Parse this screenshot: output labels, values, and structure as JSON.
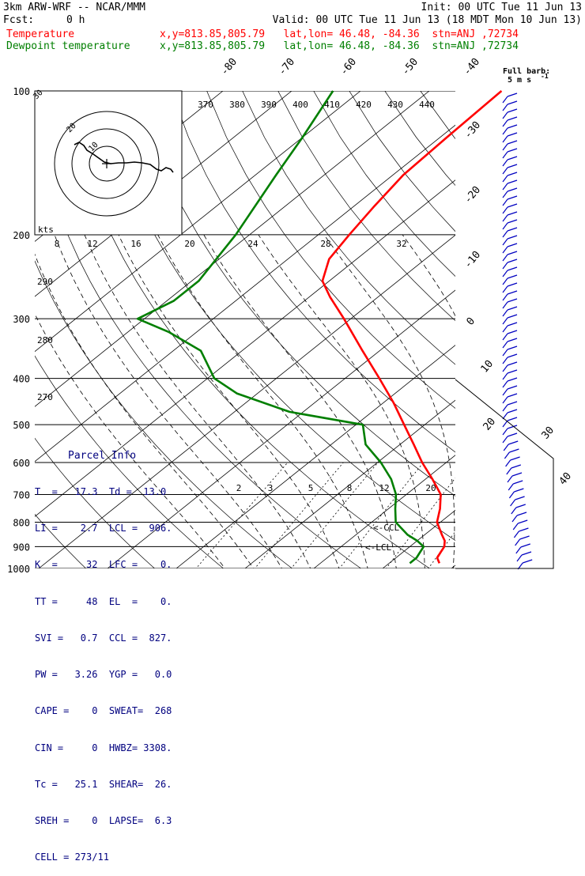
{
  "header": {
    "model": "3km ARW-WRF -- NCAR/MMM",
    "init": "Init: 00 UTC Tue 11 Jun 13",
    "fcst_label": "Fcst:",
    "fcst_value": "0 h",
    "valid": "Valid: 00 UTC Tue 11 Jun 13 (18 MDT Mon 10 Jun 13)",
    "temp_label": "Temperature",
    "temp_loc": "x,y=813.85,805.79   lat,lon= 46.48, -84.36  stn=ANJ ,72734",
    "dew_label": "Dewpoint temperature",
    "dew_loc": "x,y=813.85,805.79   lat,lon= 46.48, -84.36  stn=ANJ ,72734"
  },
  "colors": {
    "temperature": "#ff0000",
    "dewpoint": "#007f00",
    "parcel": "#00007f",
    "barbs": "#0000c0"
  },
  "barb_note": {
    "line1": "Full barb:",
    "line2": "5 m s",
    "sup": "-1"
  },
  "parcel_info": {
    "title": "Parcel Info",
    "rows": [
      "T  =   17.3  Td =  13.0",
      "LI =    2.7  LCL =  906.",
      "K  =     32  LFC =    0.",
      "TT =     48  EL  =    0.",
      "SVI =   0.7  CCL =  827.",
      "PW =   3.26  YGP =   0.0",
      "CAPE =    0  SWEAT=  268",
      "CIN =     0  HWBZ= 3308.",
      "Tc =   25.1  SHEAR=  26.",
      "SREH =    0  LAPSE=  6.3",
      "CELL = 273/11"
    ]
  },
  "hodograph": {
    "units": "kts",
    "rings": [
      "10",
      "20",
      "30"
    ]
  },
  "annotations": {
    "ccl": "<-CCL",
    "lcl": "<-LCL"
  },
  "chart_data": {
    "type": "line",
    "subtype": "skew-T log-P",
    "pressure_levels": [
      100,
      200,
      300,
      400,
      500,
      600,
      700,
      800,
      900,
      1000
    ],
    "pressure_tick_labels": [
      "100",
      "200",
      "300",
      "400",
      "500",
      "600",
      "700",
      "800",
      "900",
      "1000"
    ],
    "isotherm_labels": [
      "-80",
      "-70",
      "-60",
      "-50",
      "-40",
      "-30",
      "-20",
      "-10",
      "0",
      "10",
      "20",
      "30",
      "40"
    ],
    "theta_e_labels": [
      "370",
      "380",
      "390",
      "400",
      "410",
      "420",
      "430",
      "440"
    ],
    "mixing_ratio_labels": [
      "2",
      "3",
      "5",
      "8",
      "12",
      "20"
    ],
    "dry_adiabat_labels": [
      "290",
      "280",
      "270"
    ],
    "theta_w_labels": [
      "8",
      "12",
      "16",
      "20",
      "24",
      "28",
      "32"
    ],
    "series": [
      {
        "name": "Temperature",
        "points": [
          {
            "p": 975,
            "t": 17.3
          },
          {
            "p": 950,
            "t": 16.0
          },
          {
            "p": 925,
            "t": 15.5
          },
          {
            "p": 900,
            "t": 15.0
          },
          {
            "p": 875,
            "t": 14.0
          },
          {
            "p": 850,
            "t": 12.5
          },
          {
            "p": 800,
            "t": 9.5
          },
          {
            "p": 750,
            "t": 7.5
          },
          {
            "p": 700,
            "t": 5.0
          },
          {
            "p": 650,
            "t": 1.0
          },
          {
            "p": 600,
            "t": -3.5
          },
          {
            "p": 550,
            "t": -8.0
          },
          {
            "p": 500,
            "t": -13.0
          },
          {
            "p": 450,
            "t": -18.5
          },
          {
            "p": 400,
            "t": -25.0
          },
          {
            "p": 350,
            "t": -32.5
          },
          {
            "p": 300,
            "t": -41.0
          },
          {
            "p": 270,
            "t": -47.0
          },
          {
            "p": 250,
            "t": -51.0
          },
          {
            "p": 225,
            "t": -54.0
          },
          {
            "p": 200,
            "t": -55.5
          },
          {
            "p": 175,
            "t": -57.0
          },
          {
            "p": 150,
            "t": -58.5
          },
          {
            "p": 125,
            "t": -59.0
          },
          {
            "p": 100,
            "t": -59.5
          }
        ]
      },
      {
        "name": "Dewpoint temperature",
        "points": [
          {
            "p": 975,
            "t": 13.0
          },
          {
            "p": 950,
            "t": 13.0
          },
          {
            "p": 925,
            "t": 12.5
          },
          {
            "p": 900,
            "t": 12.0
          },
          {
            "p": 875,
            "t": 10.0
          },
          {
            "p": 850,
            "t": 7.5
          },
          {
            "p": 800,
            "t": 3.5
          },
          {
            "p": 750,
            "t": 1.0
          },
          {
            "p": 700,
            "t": -1.5
          },
          {
            "p": 650,
            "t": -5.0
          },
          {
            "p": 600,
            "t": -9.5
          },
          {
            "p": 550,
            "t": -15.0
          },
          {
            "p": 500,
            "t": -19.0
          },
          {
            "p": 470,
            "t": -32.0
          },
          {
            "p": 430,
            "t": -43.0
          },
          {
            "p": 400,
            "t": -49.0
          },
          {
            "p": 350,
            "t": -56.0
          },
          {
            "p": 320,
            "t": -64.0
          },
          {
            "p": 300,
            "t": -71.0
          },
          {
            "p": 275,
            "t": -69.0
          },
          {
            "p": 250,
            "t": -69.0
          },
          {
            "p": 200,
            "t": -72.0
          },
          {
            "p": 150,
            "t": -77.0
          },
          {
            "p": 125,
            "t": -80.0
          },
          {
            "p": 100,
            "t": -84.0
          }
        ]
      }
    ],
    "y_scale": "log",
    "ylim": [
      1000,
      100
    ],
    "grid": true
  }
}
